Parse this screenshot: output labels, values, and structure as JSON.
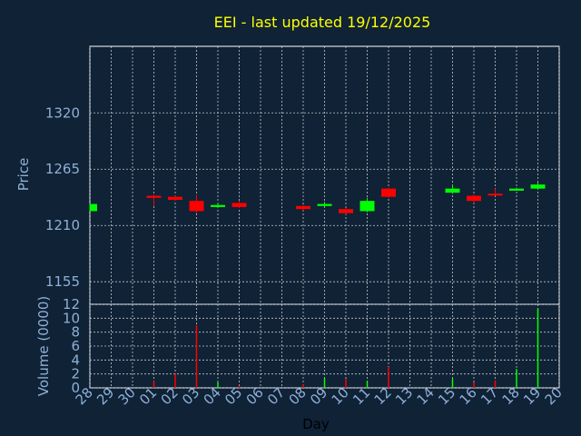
{
  "chart_data": [
    {
      "type": "candlestick",
      "title": "EEI - last updated 19/12/2025",
      "xlabel": "Day",
      "ylabel": "Price",
      "ylim": [
        1133,
        1385
      ],
      "yticks": [
        1155,
        1210,
        1265,
        1320
      ],
      "grid": true,
      "colors": {
        "up": "#00ff00",
        "down": "#ff0000",
        "background": "#0f2236",
        "title": "#ffff00",
        "axis": "#8fb0d6"
      },
      "categories": [
        "28",
        "29",
        "30",
        "01",
        "02",
        "03",
        "04",
        "05",
        "06",
        "07",
        "08",
        "09",
        "10",
        "11",
        "12",
        "13",
        "14",
        "15",
        "16",
        "17",
        "18",
        "19",
        "20"
      ],
      "candles": [
        {
          "day": "28",
          "open": 1224,
          "close": 1231,
          "high": 1231,
          "low": 1224
        },
        {
          "day": "01",
          "open": 1239,
          "close": 1237,
          "high": 1240,
          "low": 1229
        },
        {
          "day": "02",
          "open": 1238,
          "close": 1235,
          "high": 1239,
          "low": 1234
        },
        {
          "day": "03",
          "open": 1234,
          "close": 1224,
          "high": 1240,
          "low": 1222
        },
        {
          "day": "04",
          "open": 1228,
          "close": 1230,
          "high": 1232,
          "low": 1227
        },
        {
          "day": "05",
          "open": 1232,
          "close": 1228,
          "high": 1234,
          "low": 1227
        },
        {
          "day": "08",
          "open": 1229,
          "close": 1226,
          "high": 1230,
          "low": 1225
        },
        {
          "day": "09",
          "open": 1229,
          "close": 1231,
          "high": 1233,
          "low": 1228
        },
        {
          "day": "10",
          "open": 1226,
          "close": 1222,
          "high": 1227,
          "low": 1221
        },
        {
          "day": "11",
          "open": 1224,
          "close": 1234,
          "high": 1237,
          "low": 1223
        },
        {
          "day": "12",
          "open": 1246,
          "close": 1238,
          "high": 1247,
          "low": 1237
        },
        {
          "day": "15",
          "open": 1242,
          "close": 1246,
          "high": 1250,
          "low": 1241
        },
        {
          "day": "16",
          "open": 1239,
          "close": 1234,
          "high": 1240,
          "low": 1232
        },
        {
          "day": "17",
          "open": 1241,
          "close": 1240,
          "high": 1246,
          "low": 1239
        },
        {
          "day": "18",
          "open": 1244,
          "close": 1246,
          "high": 1247,
          "low": 1244
        },
        {
          "day": "19",
          "open": 1246,
          "close": 1250,
          "high": 1252,
          "low": 1245
        }
      ]
    },
    {
      "type": "bar",
      "xlabel": "Day",
      "ylabel": "Volume (0000)",
      "ylim": [
        0,
        12
      ],
      "yticks": [
        0,
        2,
        4,
        6,
        8,
        10,
        12
      ],
      "grid": true,
      "bars": [
        {
          "day": "01",
          "value": 1.0,
          "direction": "down"
        },
        {
          "day": "02",
          "value": 2.0,
          "direction": "down"
        },
        {
          "day": "03",
          "value": 9.0,
          "direction": "down"
        },
        {
          "day": "04",
          "value": 0.8,
          "direction": "up"
        },
        {
          "day": "05",
          "value": 0.3,
          "direction": "down"
        },
        {
          "day": "08",
          "value": 0.5,
          "direction": "down"
        },
        {
          "day": "09",
          "value": 1.4,
          "direction": "up"
        },
        {
          "day": "10",
          "value": 1.3,
          "direction": "down"
        },
        {
          "day": "11",
          "value": 1.0,
          "direction": "up"
        },
        {
          "day": "12",
          "value": 3.0,
          "direction": "down"
        },
        {
          "day": "15",
          "value": 1.3,
          "direction": "up"
        },
        {
          "day": "16",
          "value": 0.8,
          "direction": "down"
        },
        {
          "day": "17",
          "value": 1.1,
          "direction": "down"
        },
        {
          "day": "18",
          "value": 2.7,
          "direction": "up"
        },
        {
          "day": "19",
          "value": 11.4,
          "direction": "up"
        }
      ]
    }
  ]
}
